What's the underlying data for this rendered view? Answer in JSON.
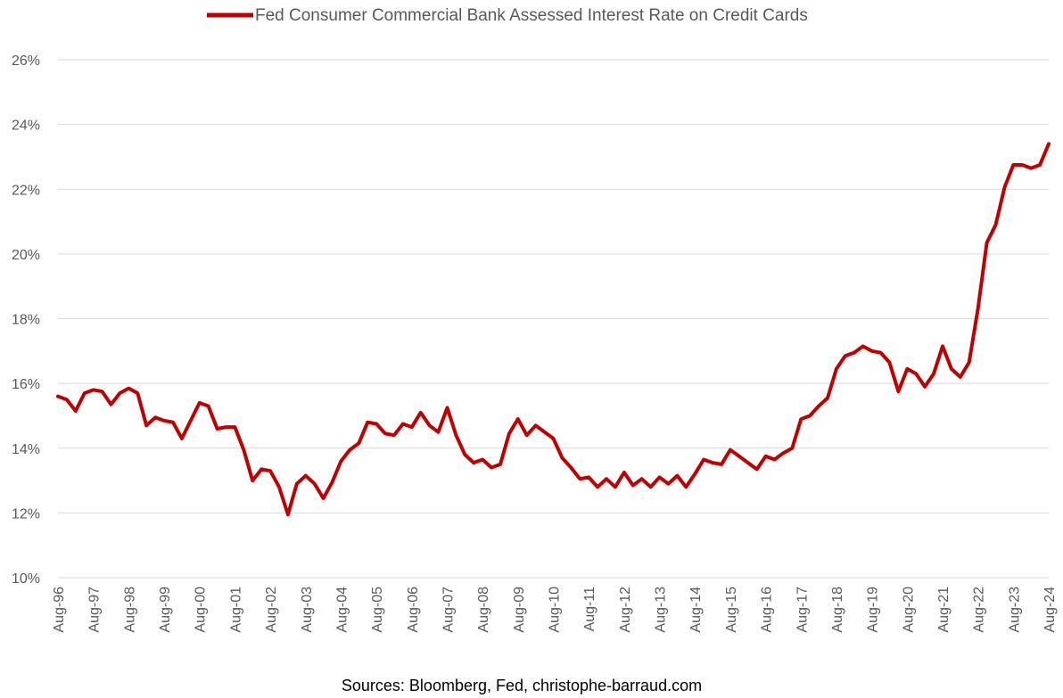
{
  "chart_data": {
    "type": "line",
    "title": "",
    "xlabel": "",
    "ylabel": "",
    "legend": {
      "position": "top"
    },
    "grid": true,
    "ylim": [
      10,
      26
    ],
    "yticks": [
      "10%",
      "12%",
      "14%",
      "16%",
      "18%",
      "20%",
      "22%",
      "24%",
      "26%"
    ],
    "xticks": [
      "Aug-96",
      "Aug-97",
      "Aug-98",
      "Aug-99",
      "Aug-00",
      "Aug-01",
      "Aug-02",
      "Aug-03",
      "Aug-04",
      "Aug-05",
      "Aug-06",
      "Aug-07",
      "Aug-08",
      "Aug-09",
      "Aug-10",
      "Aug-11",
      "Aug-12",
      "Aug-13",
      "Aug-14",
      "Aug-15",
      "Aug-16",
      "Aug-17",
      "Aug-18",
      "Aug-19",
      "Aug-20",
      "Aug-21",
      "Aug-22",
      "Aug-23",
      "Aug-24"
    ],
    "series": [
      {
        "name": "Fed Consumer Commercial Bank Assessed Interest Rate on Credit Cards",
        "color": "#c00000",
        "values": [
          15.6,
          15.5,
          15.15,
          15.7,
          15.8,
          15.75,
          15.35,
          15.7,
          15.85,
          15.7,
          14.7,
          14.95,
          14.85,
          14.8,
          14.3,
          14.85,
          15.4,
          15.3,
          14.6,
          14.65,
          14.65,
          13.95,
          13.0,
          13.35,
          13.3,
          12.8,
          11.95,
          12.9,
          13.15,
          12.9,
          12.45,
          12.95,
          13.6,
          13.95,
          14.15,
          14.8,
          14.75,
          14.45,
          14.4,
          14.75,
          14.65,
          15.1,
          14.7,
          14.5,
          15.25,
          14.4,
          13.8,
          13.55,
          13.65,
          13.4,
          13.5,
          14.45,
          14.9,
          14.4,
          14.7,
          14.5,
          14.3,
          13.7,
          13.4,
          13.05,
          13.1,
          12.8,
          13.05,
          12.8,
          13.25,
          12.85,
          13.05,
          12.8,
          13.1,
          12.9,
          13.15,
          12.8,
          13.2,
          13.65,
          13.55,
          13.5,
          13.95,
          13.75,
          13.55,
          13.35,
          13.75,
          13.65,
          13.85,
          14.0,
          14.9,
          15.0,
          15.3,
          15.55,
          16.45,
          16.85,
          16.95,
          17.15,
          17.0,
          16.95,
          16.65,
          15.75,
          16.45,
          16.3,
          15.9,
          16.3,
          17.15,
          16.45,
          16.2,
          16.65,
          18.3,
          20.35,
          20.9,
          22.05,
          22.75,
          22.75,
          22.65,
          22.75,
          23.4
        ]
      }
    ]
  },
  "footer": {
    "source": "Sources: Bloomberg, Fed, christophe-barraud.com"
  }
}
